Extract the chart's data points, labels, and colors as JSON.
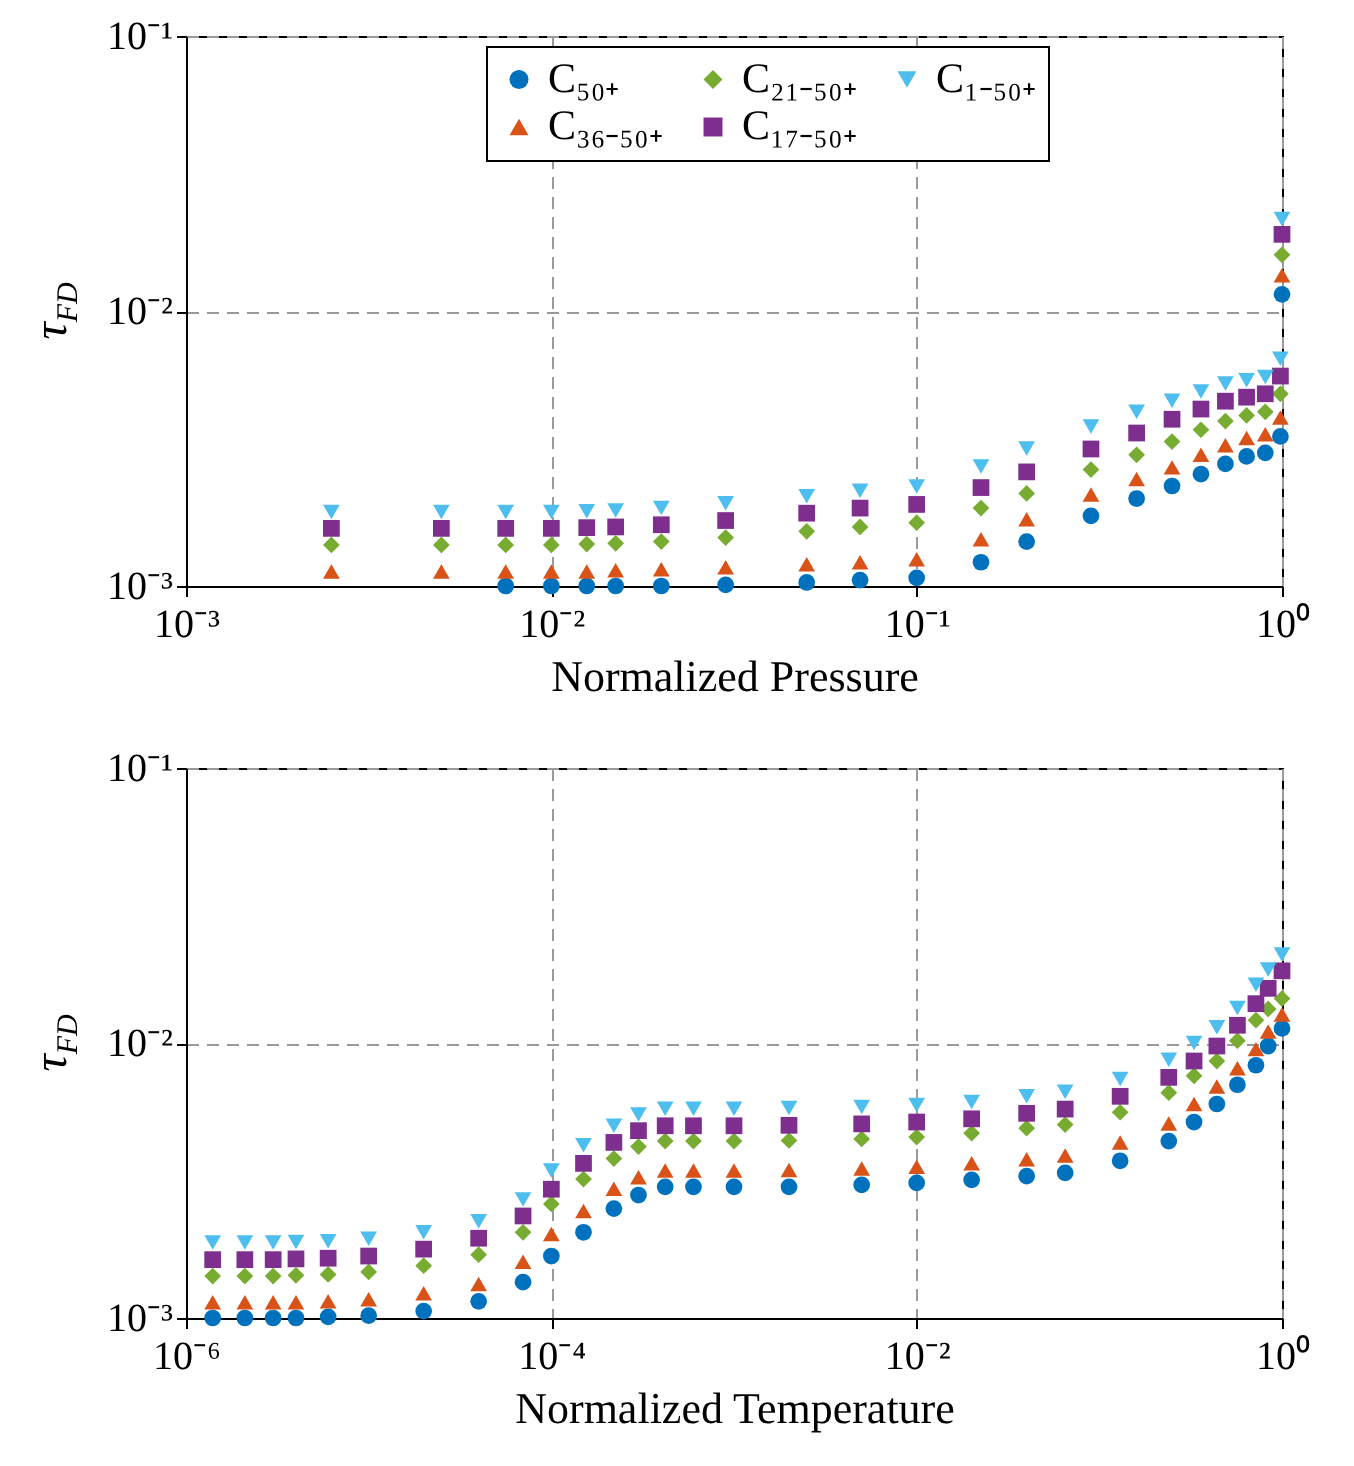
{
  "chart_data": [
    {
      "type": "scatter",
      "xlabel": "Normalized Pressure",
      "ylabel": "τ$_{FD}$",
      "log": "xy",
      "grid": true,
      "legend": "top",
      "x": [
        0.0025,
        0.005,
        0.0075,
        0.01,
        0.0125,
        0.015,
        0.02,
        0.03,
        0.05,
        0.07,
        0.1,
        0.15,
        0.2,
        0.3,
        0.4,
        0.5,
        0.6,
        0.7,
        0.8,
        0.9,
        0.99,
        1.0
      ],
      "xlim": [
        0.001,
        1
      ],
      "xticks": [
        {
          "value": 0.001,
          "label": "10⁻³"
        },
        {
          "value": 0.01,
          "label": "10⁻²"
        },
        {
          "value": 0.1,
          "label": "10⁻¹"
        },
        {
          "value": 1,
          "label": "10⁰"
        }
      ],
      "ylim": [
        0.001,
        0.1
      ],
      "yticks": [
        {
          "value": 0.001,
          "label": "10⁻³"
        },
        {
          "value": 0.01,
          "label": "10⁻²"
        },
        {
          "value": 0.1,
          "label": "10⁻¹"
        }
      ],
      "series": [
        {
          "name": "C₅₀₊",
          "color": "#0072bd",
          "marker": "circle",
          "values": [
            null,
            null,
            0.001,
            0.001,
            0.001,
            0.001,
            0.001,
            0.00101,
            0.00103,
            0.00105,
            0.00107,
            0.00122,
            0.00145,
            0.0018,
            0.00208,
            0.00231,
            0.00255,
            0.00278,
            0.00296,
            0.00305,
            0.0035,
            0.0115
          ]
        },
        {
          "name": "C₃₆₋₅₀₊",
          "color": "#d95319",
          "marker": "triangle",
          "values": [
            0.00113,
            0.00113,
            0.00113,
            0.00113,
            0.00113,
            0.00114,
            0.00115,
            0.00117,
            0.0012,
            0.00122,
            0.00125,
            0.00148,
            0.00175,
            0.00215,
            0.00245,
            0.0027,
            0.003,
            0.00325,
            0.00345,
            0.00356,
            0.0041,
            0.0135
          ]
        },
        {
          "name": "C₂₁₋₅₀₊",
          "color": "#77ac30",
          "marker": "diamond",
          "values": [
            0.00141,
            0.00141,
            0.00141,
            0.00141,
            0.00142,
            0.00143,
            0.00145,
            0.0015,
            0.00158,
            0.00164,
            0.0017,
            0.00192,
            0.00217,
            0.00265,
            0.003,
            0.00335,
            0.0037,
            0.00398,
            0.00417,
            0.0043,
            0.005,
            0.016
          ]
        },
        {
          "name": "C₁₇₋₅₀₊",
          "color": "#7e2f8e",
          "marker": "square",
          "values": [
            0.00162,
            0.00162,
            0.00162,
            0.00162,
            0.00163,
            0.00164,
            0.00167,
            0.00173,
            0.00184,
            0.00192,
            0.00198,
            0.00228,
            0.0026,
            0.00315,
            0.0036,
            0.00404,
            0.0044,
            0.0047,
            0.00486,
            0.005,
            0.0058,
            0.019
          ]
        },
        {
          "name": "C₁₋₅₀₊",
          "color": "#4dbeee",
          "marker": "triangle-down",
          "values": [
            0.00186,
            0.00186,
            0.00186,
            0.00186,
            0.00187,
            0.00188,
            0.00192,
            0.002,
            0.00212,
            0.00222,
            0.0023,
            0.00272,
            0.00316,
            0.0038,
            0.0043,
            0.00472,
            0.0051,
            0.00545,
            0.0056,
            0.00575,
            0.0067,
            0.0216
          ]
        }
      ]
    },
    {
      "type": "scatter",
      "xlabel": "Normalized Temperature",
      "ylabel": "τ$_{FD}$",
      "log": "xy",
      "grid": true,
      "x": [
        1.4e-06,
        2.1e-06,
        3e-06,
        4e-06,
        6e-06,
        1e-05,
        2e-05,
        4e-05,
        7e-05,
        0.0001,
        0.00015,
        0.00022,
        0.0003,
        0.00042,
        0.0006,
        0.001,
        0.002,
        0.005,
        0.01,
        0.02,
        0.04,
        0.065,
        0.13,
        0.24,
        0.33,
        0.44,
        0.57,
        0.72,
        0.84,
        1.0
      ],
      "xlim": [
        1e-06,
        1
      ],
      "xticks": [
        {
          "value": 1e-06,
          "label": "10⁻⁶"
        },
        {
          "value": 0.0001,
          "label": "10⁻⁴"
        },
        {
          "value": 0.01,
          "label": "10⁻²"
        },
        {
          "value": 1,
          "label": "10⁰"
        }
      ],
      "ylim": [
        0.001,
        0.1
      ],
      "yticks": [
        {
          "value": 0.001,
          "label": "10⁻³"
        },
        {
          "value": 0.01,
          "label": "10⁻²"
        },
        {
          "value": 0.1,
          "label": "10⁻¹"
        }
      ],
      "series": [
        {
          "color": "#0072bd",
          "marker": "circle",
          "values": [
            0.001,
            0.001,
            0.001,
            0.001,
            0.00101,
            0.00102,
            0.00106,
            0.00115,
            0.00135,
            0.00168,
            0.00205,
            0.0025,
            0.0028,
            0.003,
            0.003,
            0.003,
            0.003,
            0.00305,
            0.0031,
            0.00318,
            0.00328,
            0.00337,
            0.00373,
            0.0044,
            0.00516,
            0.006,
            0.00705,
            0.0083,
            0.00975,
            0.0113
          ]
        },
        {
          "color": "#d95319",
          "marker": "triangle",
          "values": [
            0.00114,
            0.00114,
            0.00114,
            0.00114,
            0.00115,
            0.00117,
            0.00123,
            0.00133,
            0.0016,
            0.00202,
            0.00245,
            0.00295,
            0.00325,
            0.00344,
            0.00344,
            0.00344,
            0.00345,
            0.0035,
            0.00355,
            0.00365,
            0.00378,
            0.0039,
            0.00435,
            0.0051,
            0.006,
            0.00695,
            0.0081,
            0.0095,
            0.011,
            0.0127
          ]
        },
        {
          "color": "#77ac30",
          "marker": "diamond",
          "values": [
            0.00142,
            0.00142,
            0.00142,
            0.00143,
            0.00144,
            0.00147,
            0.00155,
            0.0017,
            0.00205,
            0.0026,
            0.0032,
            0.0038,
            0.0042,
            0.0044,
            0.0044,
            0.0044,
            0.00442,
            0.00448,
            0.00455,
            0.0047,
            0.0049,
            0.00505,
            0.0056,
            0.0066,
            0.0076,
            0.0086,
            0.0102,
            0.0121,
            0.0133,
            0.0145
          ]
        },
        {
          "color": "#7e2f8e",
          "marker": "square",
          "values": [
            0.00163,
            0.00163,
            0.00163,
            0.00164,
            0.00165,
            0.00168,
            0.00178,
            0.00195,
            0.00235,
            0.00294,
            0.00365,
            0.00435,
            0.0048,
            0.005,
            0.005,
            0.005,
            0.00502,
            0.00508,
            0.00516,
            0.0053,
            0.00555,
            0.00575,
            0.0064,
            0.0075,
            0.0086,
            0.00975,
            0.0116,
            0.0139,
            0.0158,
            0.0183
          ]
        },
        {
          "color": "#4dbeee",
          "marker": "triangle-down",
          "values": [
            0.00188,
            0.00188,
            0.00188,
            0.00189,
            0.0019,
            0.00194,
            0.00205,
            0.00225,
            0.0027,
            0.00344,
            0.00425,
            0.005,
            0.0055,
            0.00577,
            0.00577,
            0.00577,
            0.0058,
            0.00585,
            0.00595,
            0.0061,
            0.0064,
            0.00665,
            0.0074,
            0.0087,
            0.01,
            0.0114,
            0.0134,
            0.0163,
            0.0185,
            0.021
          ]
        }
      ]
    }
  ]
}
